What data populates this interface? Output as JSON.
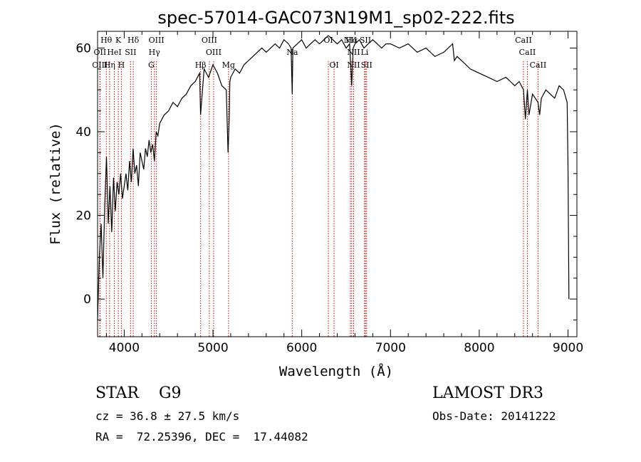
{
  "chart_data": {
    "type": "line",
    "title": "spec-57014-GAC073N19M1_sp02-222.fits",
    "xlabel": "Wavelength (Å)",
    "ylabel": "Flux (relative)",
    "xlim": [
      3700,
      9100
    ],
    "ylim": [
      -9,
      64
    ],
    "xticks": [
      4000,
      5000,
      6000,
      7000,
      8000,
      9000
    ],
    "yticks": [
      0,
      20,
      40,
      60
    ],
    "line_color": "#000000",
    "marker_color": "#cc0000",
    "series": [
      {
        "name": "spectrum",
        "x": [
          3700,
          3720,
          3740,
          3760,
          3780,
          3800,
          3820,
          3840,
          3860,
          3880,
          3900,
          3920,
          3940,
          3960,
          3980,
          4000,
          4020,
          4040,
          4060,
          4080,
          4100,
          4120,
          4140,
          4160,
          4180,
          4200,
          4220,
          4240,
          4260,
          4280,
          4300,
          4320,
          4340,
          4360,
          4380,
          4400,
          4450,
          4500,
          4550,
          4600,
          4650,
          4700,
          4750,
          4800,
          4850,
          4860,
          4900,
          4950,
          5000,
          5050,
          5100,
          5150,
          5170,
          5183,
          5190,
          5200,
          5250,
          5300,
          5350,
          5400,
          5450,
          5500,
          5550,
          5600,
          5650,
          5700,
          5750,
          5800,
          5850,
          5880,
          5893,
          5900,
          5950,
          6000,
          6050,
          6100,
          6150,
          6200,
          6250,
          6300,
          6350,
          6400,
          6450,
          6500,
          6540,
          6563,
          6580,
          6600,
          6650,
          6700,
          6750,
          6800,
          6850,
          6900,
          6950,
          7000,
          7100,
          7200,
          7300,
          7400,
          7500,
          7600,
          7700,
          7720,
          7750,
          7800,
          7900,
          8000,
          8100,
          8200,
          8300,
          8400,
          8450,
          8498,
          8520,
          8542,
          8560,
          8600,
          8662,
          8680,
          8700,
          8750,
          8800,
          8850,
          8900,
          8950,
          8990,
          9000,
          9010
        ],
        "y": [
          -5,
          10,
          18,
          5,
          22,
          34,
          18,
          27,
          16,
          29,
          21,
          28,
          25,
          30,
          24,
          27,
          30,
          26,
          33,
          28,
          36,
          30,
          32,
          27,
          35,
          33,
          31,
          36,
          34,
          38,
          35,
          37,
          33,
          40,
          39,
          42,
          44,
          45,
          47,
          46,
          48,
          49,
          51,
          52,
          54,
          44,
          55,
          53,
          56,
          54,
          51,
          50,
          35,
          43,
          52,
          53,
          55,
          54,
          56,
          57,
          58,
          59,
          60,
          59,
          60,
          61,
          60,
          62,
          61,
          60,
          49,
          60,
          61,
          62,
          60,
          61,
          62,
          61,
          62,
          63,
          62,
          61,
          62,
          60,
          61,
          51,
          60,
          61,
          62,
          60,
          61,
          62,
          61,
          60,
          61,
          61,
          60,
          61,
          59,
          60,
          58,
          59,
          61,
          57,
          58,
          57,
          55,
          54,
          53,
          52,
          53,
          51,
          52,
          50,
          43,
          50,
          44,
          49,
          47,
          44,
          48,
          50,
          49,
          48,
          51,
          50,
          47,
          32,
          0
        ]
      }
    ],
    "spectral_lines": [
      {
        "label": "Hθ",
        "x": 3798,
        "row": 0
      },
      {
        "label": "OII",
        "x": 3727,
        "row": 1
      },
      {
        "label": "OIII",
        "x": 3726,
        "row": 2
      },
      {
        "label": "Hη",
        "x": 3835,
        "row": 2
      },
      {
        "label": "HeI",
        "x": 3889,
        "row": 1
      },
      {
        "label": "K",
        "x": 3934,
        "row": 0
      },
      {
        "label": "SII",
        "x": 4072,
        "row": 1
      },
      {
        "label": "H",
        "x": 3968,
        "row": 2
      },
      {
        "label": "Hδ",
        "x": 4102,
        "row": 0
      },
      {
        "label": "OIII",
        "x": 4363,
        "row": 0
      },
      {
        "label": "Hγ",
        "x": 4340,
        "row": 1
      },
      {
        "label": "G",
        "x": 4305,
        "row": 2
      },
      {
        "label": "Hβ",
        "x": 4861,
        "row": 2
      },
      {
        "label": "OIII",
        "x": 4959,
        "row": 0
      },
      {
        "label": "OIII",
        "x": 5007,
        "row": 1
      },
      {
        "label": "Mg",
        "x": 5175,
        "row": 2
      },
      {
        "label": "Na",
        "x": 5893,
        "row": 1
      },
      {
        "label": "OI",
        "x": 6300,
        "row": 0
      },
      {
        "label": "OI",
        "x": 6364,
        "row": 2
      },
      {
        "label": "NII",
        "x": 6548,
        "row": 0
      },
      {
        "label": "Hα",
        "x": 6563,
        "row": 0
      },
      {
        "label": "NII",
        "x": 6584,
        "row": 1
      },
      {
        "label": "NII",
        "x": 6584,
        "row": 2
      },
      {
        "label": "SII",
        "x": 6717,
        "row": 0
      },
      {
        "label": "Li",
        "x": 6708,
        "row": 1
      },
      {
        "label": "SII",
        "x": 6731,
        "row": 2
      },
      {
        "label": "CaII",
        "x": 8498,
        "row": 0
      },
      {
        "label": "CaII",
        "x": 8542,
        "row": 1
      },
      {
        "label": "CaII",
        "x": 8662,
        "row": 2
      }
    ]
  },
  "info": {
    "class_text": "STAR    G9",
    "survey": "LAMOST DR3",
    "cz": "cz = 36.8 ± 27.5 km/s",
    "obs_date": "Obs-Date: 20141222",
    "coords": "RA =  72.25396, DEC =  17.44082"
  }
}
